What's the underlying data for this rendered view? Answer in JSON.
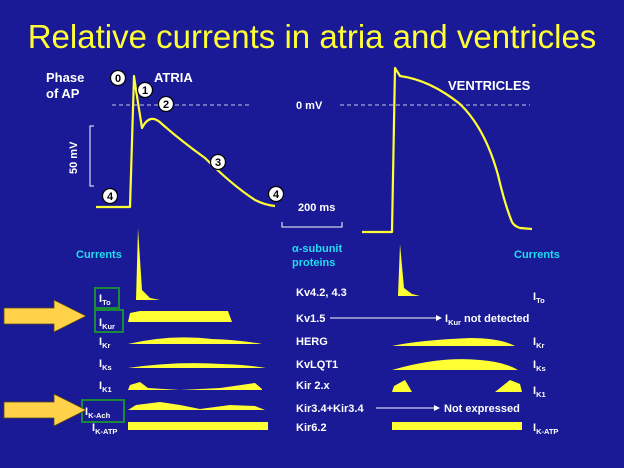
{
  "title": "Relative currents in atria and ventricles",
  "ap_header": {
    "line1": "Phase",
    "line2": "of AP"
  },
  "atria_label": "ATRIA",
  "ventricles_label": "VENTRICLES",
  "zero_mv": "0 mV",
  "scale_mv": "50 mV",
  "scale_ms": "200 ms",
  "phases": [
    "0",
    "1",
    "2",
    "3",
    "4",
    "4"
  ],
  "currents_left": "Currents",
  "currents_right": "Currents",
  "subunit_header": {
    "line1": "α-subunit",
    "line2": "proteins"
  },
  "rows": [
    {
      "cur": "I",
      "sub": "To",
      "protein": "Kv4.2, 4.3",
      "right_cur": "I",
      "right_sub": "To",
      "note": "",
      "highlighted": true
    },
    {
      "cur": "I",
      "sub": "Kur",
      "protein": "Kv1.5",
      "right_cur": "I",
      "right_sub": "Kur",
      "note": "not detected",
      "highlighted": true
    },
    {
      "cur": "I",
      "sub": "Kr",
      "protein": "HERG",
      "right_cur": "I",
      "right_sub": "Kr",
      "note": "",
      "highlighted": false
    },
    {
      "cur": "I",
      "sub": "Ks",
      "protein": "KvLQT1",
      "right_cur": "I",
      "right_sub": "Ks",
      "note": "",
      "highlighted": false
    },
    {
      "cur": "I",
      "sub": "K1",
      "protein": "Kir 2.x",
      "right_cur": "I",
      "right_sub": "K1",
      "note": "",
      "highlighted": false
    },
    {
      "cur": "I",
      "sub": "K-Ach",
      "protein": "Kir3.4+Kir3.4",
      "right_cur": "",
      "right_sub": "",
      "note": "Not expressed",
      "highlighted": true
    },
    {
      "cur": "I",
      "sub": "K-ATP",
      "protein": "Kir6.2",
      "right_cur": "I",
      "right_sub": "K-ATP",
      "note": "",
      "highlighted": false
    }
  ],
  "colors": {
    "background": "#1a1a96",
    "trace": "#ffff33",
    "title": "#ffff33",
    "accent_cyan": "#22ddee",
    "arrow": "#ffd24a",
    "highlight_box": "#1a8a3a"
  }
}
